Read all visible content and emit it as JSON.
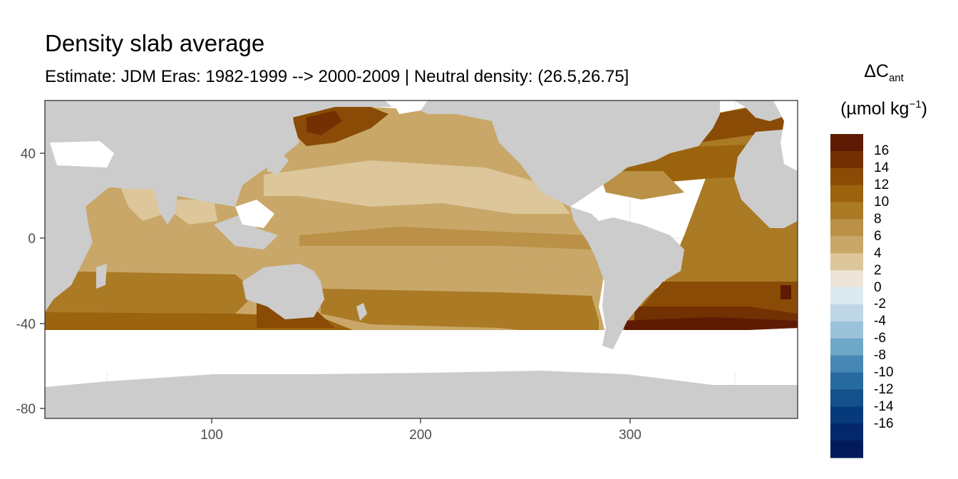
{
  "title": "Density slab average",
  "subtitle": "Estimate: JDM Eras: 1982-1999 --> 2000-2009 | Neutral density: (26.5,26.75]",
  "legend": {
    "delta": "ΔC",
    "delta_sub": "ant",
    "unit_prefix": "(µmol kg",
    "unit_sup": "−1",
    "unit_suffix": ")",
    "labels": [
      "16",
      "14",
      "12",
      "10",
      "8",
      "6",
      "4",
      "2",
      "0",
      "-2",
      "-4",
      "-6",
      "-8",
      "-10",
      "-12",
      "-14",
      "-16"
    ],
    "colors": [
      "#5e1a02",
      "#733002",
      "#8a4b06",
      "#9b630d",
      "#ab7a25",
      "#ba9146",
      "#c9a769",
      "#dcc69a",
      "#ece5d8",
      "#dce9f0",
      "#bed6e6",
      "#9cc2da",
      "#6ea8c9",
      "#4787b5",
      "#276aa0",
      "#14508a",
      "#073a7a",
      "#04286b",
      "#031b5a"
    ]
  },
  "x_axis": {
    "ticks": [
      "100",
      "200",
      "300"
    ],
    "range": [
      20,
      380
    ]
  },
  "y_axis": {
    "ticks": [
      "40",
      "0",
      "-40",
      "-80"
    ],
    "range": [
      -85,
      65
    ]
  },
  "map": {
    "land_color": "#cccccc",
    "no_data_color": "#ffffff",
    "panel_border": "#333333",
    "grid_color": "#ebebeb"
  }
}
